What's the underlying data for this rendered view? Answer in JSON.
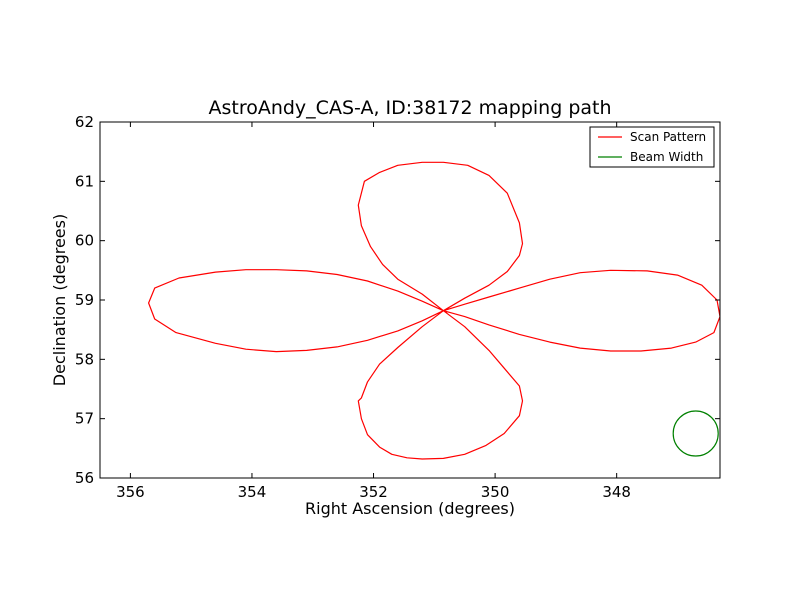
{
  "chart_data": {
    "type": "line",
    "title": "AstroAndy_CAS-A, ID:38172 mapping path",
    "xlabel": "Right Ascension (degrees)",
    "ylabel": "Declination (degrees)",
    "xlim": [
      356.5,
      346.3
    ],
    "ylim": [
      56,
      62
    ],
    "x_inverted": true,
    "xticks": [
      356,
      354,
      352,
      350,
      348
    ],
    "yticks": [
      56,
      57,
      58,
      59,
      60,
      61,
      62
    ],
    "grid": false,
    "legend_position": "top-right",
    "series": [
      {
        "name": "Scan Pattern",
        "color": "#ff0000",
        "x": [
          350.85,
          351.2,
          351.6,
          352.1,
          352.6,
          353.1,
          353.6,
          354.1,
          354.6,
          355.2,
          355.6,
          355.7,
          355.6,
          355.25,
          354.6,
          354.1,
          353.6,
          353.1,
          352.6,
          352.1,
          351.6,
          351.2,
          350.85,
          351.2,
          351.6,
          351.85,
          352.05,
          352.2,
          352.25,
          352.15,
          351.9,
          351.6,
          351.2,
          350.85,
          350.45,
          350.1,
          349.8,
          349.6,
          349.55,
          349.6,
          349.8,
          350.1,
          350.5,
          350.85,
          350.5,
          350.1,
          349.6,
          349.1,
          348.6,
          348.1,
          347.6,
          347.1,
          346.7,
          346.4,
          346.3,
          346.35,
          346.6,
          347.0,
          347.5,
          348.1,
          348.6,
          349.1,
          349.6,
          350.1,
          350.5,
          350.85,
          351.2,
          351.6,
          351.9,
          352.1,
          352.2,
          352.25,
          352.2,
          352.1,
          351.9,
          351.7,
          351.45,
          351.2,
          350.85,
          350.5,
          350.15,
          349.85,
          349.6,
          349.55,
          349.6,
          349.85,
          350.1,
          350.5,
          350.85
        ],
        "y": [
          58.82,
          58.98,
          59.15,
          59.32,
          59.43,
          59.49,
          59.51,
          59.51,
          59.47,
          59.37,
          59.2,
          58.95,
          58.68,
          58.45,
          58.27,
          58.17,
          58.13,
          58.15,
          58.21,
          58.32,
          58.48,
          58.65,
          58.82,
          59.1,
          59.35,
          59.6,
          59.9,
          60.25,
          60.6,
          61.0,
          61.15,
          61.27,
          61.32,
          61.32,
          61.27,
          61.1,
          60.8,
          60.3,
          59.95,
          59.75,
          59.48,
          59.25,
          59.03,
          58.82,
          58.72,
          58.58,
          58.42,
          58.29,
          58.19,
          58.14,
          58.14,
          58.19,
          58.29,
          58.45,
          58.72,
          59.0,
          59.25,
          59.42,
          59.49,
          59.5,
          59.46,
          59.35,
          59.2,
          59.05,
          58.93,
          58.82,
          58.55,
          58.2,
          57.92,
          57.62,
          57.35,
          57.3,
          57.0,
          56.73,
          56.52,
          56.4,
          56.34,
          56.32,
          56.33,
          56.4,
          56.55,
          56.75,
          57.05,
          57.3,
          57.55,
          57.85,
          58.15,
          58.55,
          58.82
        ]
      },
      {
        "name": "Beam Width",
        "color": "#008000",
        "center": [
          346.7,
          56.75
        ],
        "radius_deg": 0.37
      }
    ]
  }
}
